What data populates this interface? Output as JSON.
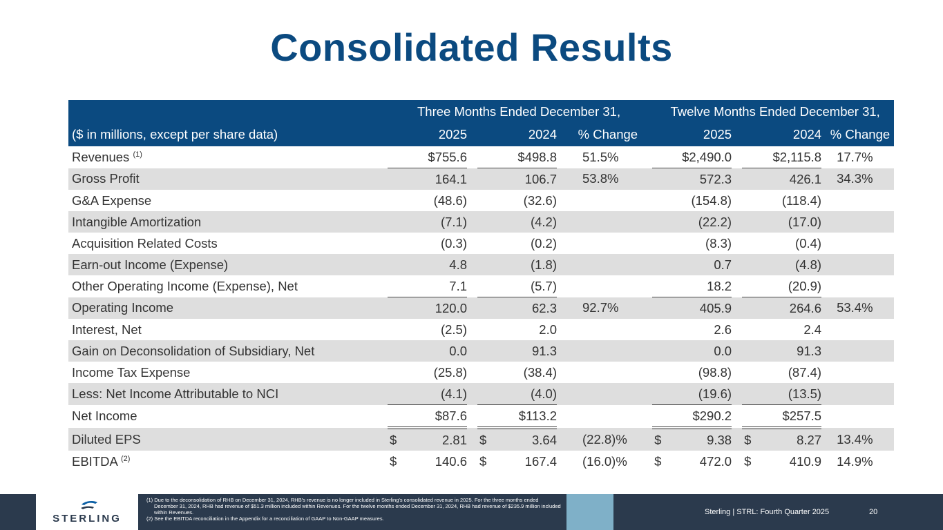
{
  "title": "Consolidated Results",
  "table": {
    "group_headers": {
      "three_months": "Three Months Ended December 31,",
      "twelve_months": "Twelve Months Ended December 31,"
    },
    "column_headers": {
      "label": "($ in millions, except per share data)",
      "q_2025": "2025",
      "q_2024": "2024",
      "q_change": "% Change",
      "y_2025": "2025",
      "y_2024": "2024",
      "y_change": "% Change"
    },
    "rows": [
      {
        "label": "Revenues",
        "note": "(1)",
        "q25": "$755.6",
        "q24": "$498.8",
        "qchg": "51.5%",
        "y25": "$2,490.0",
        "y24": "$2,115.8",
        "ychg": "17.7%"
      },
      {
        "label": "Gross Profit",
        "q25": "164.1",
        "q24": "106.7",
        "qchg": "53.8%",
        "y25": "572.3",
        "y24": "426.1",
        "ychg": "34.3%"
      },
      {
        "label": "G&A Expense",
        "q25": "(48.6)",
        "q24": "(32.6)",
        "qchg": "",
        "y25": "(154.8)",
        "y24": "(118.4)",
        "ychg": ""
      },
      {
        "label": "Intangible Amortization",
        "q25": "(7.1)",
        "q24": "(4.2)",
        "qchg": "",
        "y25": "(22.2)",
        "y24": "(17.0)",
        "ychg": ""
      },
      {
        "label": "Acquisition Related Costs",
        "q25": "(0.3)",
        "q24": "(0.2)",
        "qchg": "",
        "y25": "(8.3)",
        "y24": "(0.4)",
        "ychg": ""
      },
      {
        "label": "Earn-out Income (Expense)",
        "q25": "4.8",
        "q24": "(1.8)",
        "qchg": "",
        "y25": "0.7",
        "y24": "(4.8)",
        "ychg": ""
      },
      {
        "label": "Other Operating Income (Expense), Net",
        "q25": "7.1",
        "q24": "(5.7)",
        "qchg": "",
        "y25": "18.2",
        "y24": "(20.9)",
        "ychg": ""
      },
      {
        "label": "Operating Income",
        "q25": "120.0",
        "q24": "62.3",
        "qchg": "92.7%",
        "y25": "405.9",
        "y24": "264.6",
        "ychg": "53.4%"
      },
      {
        "label": "Interest, Net",
        "q25": "(2.5)",
        "q24": "2.0",
        "qchg": "",
        "y25": "2.6",
        "y24": "2.4",
        "ychg": ""
      },
      {
        "label": "Gain on Deconsolidation of Subsidiary, Net",
        "q25": "0.0",
        "q24": "91.3",
        "qchg": "",
        "y25": "0.0",
        "y24": "91.3",
        "ychg": ""
      },
      {
        "label": "Income Tax Expense",
        "q25": "(25.8)",
        "q24": "(38.4)",
        "qchg": "",
        "y25": "(98.8)",
        "y24": "(87.4)",
        "ychg": ""
      },
      {
        "label": "Less: Net Income Attributable to NCI",
        "q25": "(4.1)",
        "q24": "(4.0)",
        "qchg": "",
        "y25": "(19.6)",
        "y24": "(13.5)",
        "ychg": ""
      },
      {
        "label": "Net Income",
        "q25": "$87.6",
        "q24": "$113.2",
        "qchg": "",
        "y25": "$290.2",
        "y24": "$257.5",
        "ychg": ""
      },
      {
        "label": "Diluted EPS",
        "dollar": "$",
        "q25": "2.81",
        "q24": "3.64",
        "qchg": "(22.8)%",
        "y25": "9.38",
        "y24": "8.27",
        "ychg": "13.4%"
      },
      {
        "label": "EBITDA",
        "note": "(2)",
        "dollar": "$",
        "q25": "140.6",
        "q24": "167.4",
        "qchg": "(16.0)%",
        "y25": "472.0",
        "y24": "410.9",
        "ychg": "14.9%"
      }
    ]
  },
  "footer": {
    "logo_text": "STERLING",
    "note1": "(1)  Due to the deconsolidation of RHB on December 31, 2024, RHB's revenue is no longer included in Sterling's consolidated revenue in 2025. For the three months ended December 31, 2024, RHB had revenue of $51.3 million included within Revenues. For the twelve months ended December 31, 2024, RHB had revenue of $235.9 million included within Revenues.",
    "note2": "(2)  See the EBITDA reconciliation in the Appendix for a reconciliation of GAAP to Non-GAAP measures.",
    "company": "Sterling | STRL:  Fourth Quarter  2025",
    "page_number": "20"
  },
  "colors": {
    "brand_blue": "#0b4a80",
    "row_shade": "#dedede",
    "footer_bg": "#2b3a4d",
    "footer_accent": "#7fb0c8"
  }
}
